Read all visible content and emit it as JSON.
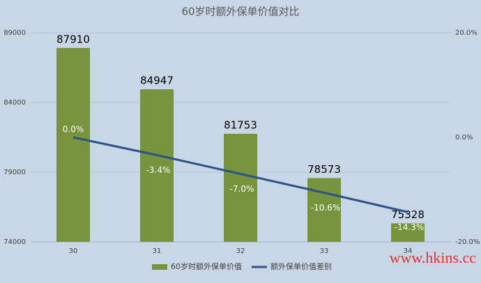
{
  "chart_data": {
    "type": "bar_line",
    "title": "60岁时额外保单价值对比",
    "categories": [
      "30",
      "31",
      "32",
      "33",
      "34"
    ],
    "series": [
      {
        "name": "60岁时额外保单价值",
        "type": "bar",
        "color": "#77933c",
        "values": [
          87910,
          84947,
          81753,
          78573,
          75328
        ]
      },
      {
        "name": "额外保单价值差别",
        "type": "line",
        "axis": "y2",
        "color": "#2c5287",
        "values": [
          0.0,
          -3.4,
          -7.0,
          -10.6,
          -14.3
        ],
        "value_labels": [
          "0.0%",
          "-3.4%",
          "-7.0%",
          "-10.6%",
          "-14.3%"
        ]
      }
    ],
    "ylim": [
      74000,
      89000
    ],
    "yticks": [
      74000,
      79000,
      84000,
      89000
    ],
    "y2lim": [
      -20,
      20
    ],
    "y2ticks": [
      {
        "value": -20,
        "label": "-20.0%"
      },
      {
        "value": 0,
        "label": "0.0%"
      },
      {
        "value": 20,
        "label": "20.0%"
      }
    ],
    "grid": true,
    "legend": "bottom",
    "watermark": "www.hkins.cc"
  }
}
